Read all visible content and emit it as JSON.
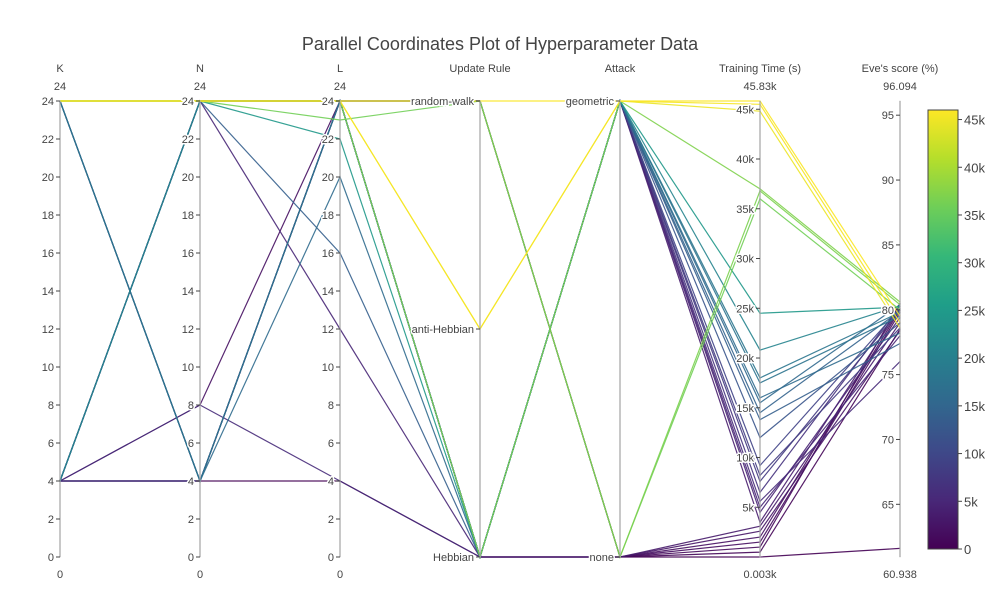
{
  "chart_data": {
    "type": "parallel_coordinates",
    "title": "Parallel Coordinates Plot of Hyperparameter Data",
    "colorbar": {
      "colorscale": "viridis",
      "range": [
        0,
        46000
      ],
      "ticks": [
        0,
        5000,
        10000,
        15000,
        20000,
        25000,
        30000,
        35000,
        40000,
        45000
      ],
      "tick_labels": [
        "0",
        "5k",
        "10k",
        "15k",
        "20k",
        "25k",
        "30k",
        "35k",
        "40k",
        "45k"
      ]
    },
    "dimensions": [
      {
        "label": "K",
        "range": [
          0,
          24
        ],
        "range_labels": [
          "0",
          "24"
        ],
        "ticks": [
          0,
          2,
          4,
          6,
          8,
          10,
          12,
          14,
          16,
          18,
          20,
          22,
          24
        ],
        "tick_labels": [
          "0",
          "2",
          "4",
          "6",
          "8",
          "10",
          "12",
          "14",
          "16",
          "18",
          "20",
          "22",
          "24"
        ]
      },
      {
        "label": "N",
        "range": [
          0,
          24
        ],
        "range_labels": [
          "0",
          "24"
        ],
        "ticks": [
          0,
          2,
          4,
          6,
          8,
          10,
          12,
          14,
          16,
          18,
          20,
          22,
          24
        ],
        "tick_labels": [
          "0",
          "2",
          "4",
          "6",
          "8",
          "10",
          "12",
          "14",
          "16",
          "18",
          "20",
          "22",
          "24"
        ]
      },
      {
        "label": "L",
        "range": [
          0,
          24
        ],
        "range_labels": [
          "0",
          "24"
        ],
        "ticks": [
          0,
          2,
          4,
          6,
          8,
          10,
          12,
          14,
          16,
          18,
          20,
          22,
          24
        ],
        "tick_labels": [
          "0",
          "2",
          "4",
          "6",
          "8",
          "10",
          "12",
          "14",
          "16",
          "18",
          "20",
          "22",
          "24"
        ]
      },
      {
        "label": "Update Rule",
        "range": [
          0,
          2
        ],
        "range_labels": [
          "",
          ""
        ],
        "ticks": [
          0,
          1,
          2
        ],
        "tick_labels": [
          "Hebbian",
          "anti-Hebbian",
          "random-walk"
        ]
      },
      {
        "label": "Attack",
        "range": [
          0,
          1
        ],
        "range_labels": [
          "",
          ""
        ],
        "ticks": [
          0,
          1
        ],
        "tick_labels": [
          "none",
          "geometric"
        ]
      },
      {
        "label": "Training Time (s)",
        "range": [
          3,
          45830
        ],
        "range_labels": [
          "0.003k",
          "45.83k"
        ],
        "ticks": [
          5000,
          10000,
          15000,
          20000,
          25000,
          30000,
          35000,
          40000,
          45000
        ],
        "tick_labels": [
          "5k",
          "10k",
          "15k",
          "20k",
          "25k",
          "30k",
          "35k",
          "40k",
          "45k"
        ]
      },
      {
        "label": "Eve's score (%)",
        "range": [
          60.938,
          96.094
        ],
        "range_labels": [
          "60.938",
          "96.094"
        ],
        "ticks": [
          65,
          70,
          75,
          80,
          85,
          90,
          95
        ],
        "tick_labels": [
          "65",
          "70",
          "75",
          "80",
          "85",
          "90",
          "95"
        ]
      }
    ],
    "records": [
      [
        24,
        24,
        24,
        2,
        1,
        45830,
        79.5
      ],
      [
        24,
        24,
        24,
        1,
        1,
        45500,
        79.0
      ],
      [
        24,
        24,
        24,
        1,
        1,
        44800,
        78.6
      ],
      [
        24,
        24,
        24,
        2,
        0,
        36800,
        80.4
      ],
      [
        24,
        24,
        23,
        2,
        0,
        36000,
        80.0
      ],
      [
        24,
        24,
        24,
        0,
        1,
        37000,
        80.6
      ],
      [
        24,
        24,
        22,
        0,
        1,
        24500,
        80.2
      ],
      [
        4,
        24,
        24,
        0,
        1,
        20800,
        80.3
      ],
      [
        24,
        4,
        24,
        0,
        1,
        18000,
        79.8
      ],
      [
        4,
        24,
        24,
        0,
        1,
        17500,
        79.5
      ],
      [
        24,
        4,
        20,
        0,
        1,
        16000,
        78.2
      ],
      [
        4,
        24,
        24,
        0,
        1,
        15500,
        80.4
      ],
      [
        24,
        4,
        24,
        0,
        1,
        14500,
        79.9
      ],
      [
        4,
        24,
        16,
        0,
        1,
        13800,
        77.4
      ],
      [
        4,
        24,
        24,
        0,
        1,
        12000,
        79.0
      ],
      [
        24,
        4,
        24,
        0,
        1,
        9200,
        80.1
      ],
      [
        4,
        4,
        24,
        0,
        1,
        8200,
        78.6
      ],
      [
        4,
        24,
        24,
        0,
        1,
        7600,
        80.0
      ],
      [
        24,
        24,
        24,
        0,
        1,
        6500,
        80.3
      ],
      [
        4,
        8,
        4,
        0,
        1,
        5600,
        76.0
      ],
      [
        4,
        24,
        12,
        0,
        1,
        5000,
        78.0
      ],
      [
        24,
        4,
        24,
        0,
        1,
        4500,
        79.4
      ],
      [
        4,
        24,
        24,
        0,
        1,
        3500,
        80.1
      ],
      [
        4,
        24,
        24,
        0,
        0,
        3100,
        79.0
      ],
      [
        4,
        4,
        24,
        0,
        0,
        2600,
        78.4
      ],
      [
        4,
        8,
        24,
        0,
        0,
        2000,
        80.0
      ],
      [
        24,
        4,
        24,
        2,
        0,
        1500,
        79.8
      ],
      [
        4,
        24,
        24,
        2,
        0,
        1000,
        80.5
      ],
      [
        4,
        4,
        24,
        2,
        0,
        500,
        78.5
      ],
      [
        4,
        4,
        4,
        0,
        0,
        3,
        61.6
      ]
    ]
  }
}
